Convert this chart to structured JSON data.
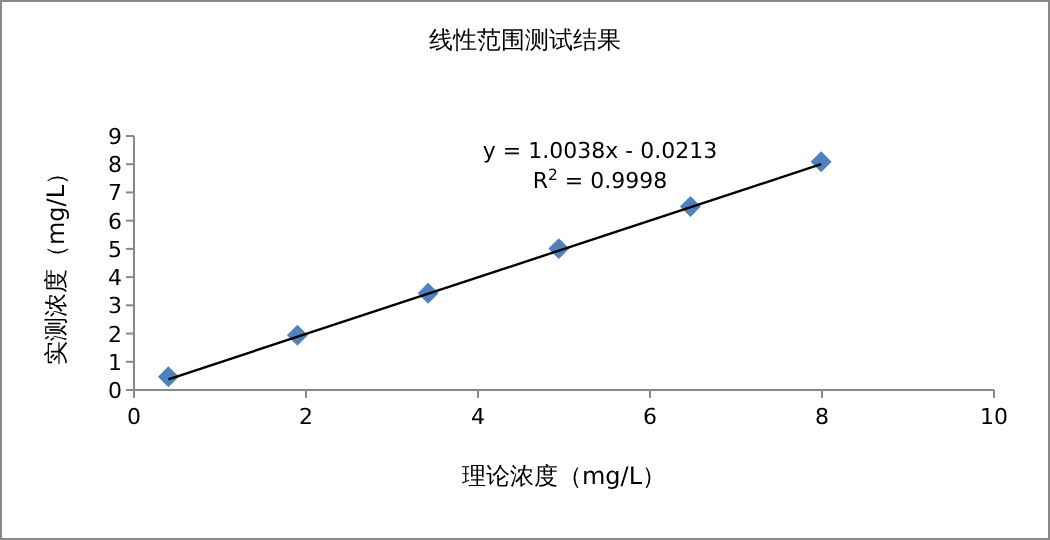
{
  "chart_data": {
    "type": "scatter",
    "title": "线性范围测试结果",
    "xlabel": "理论浓度（mg/L）",
    "ylabel": "实测浓度（mg/L）",
    "x": [
      0.4,
      1.9,
      3.42,
      4.94,
      6.47,
      7.99
    ],
    "series": [
      {
        "color": "#4f81bd",
        "marker": "diamond",
        "values": [
          0.47,
          1.94,
          3.43,
          5.01,
          6.5,
          8.09
        ]
      },
      {
        "type": "line",
        "color": "#000000",
        "marker": "none",
        "x": [
          0.4,
          7.99
        ],
        "values": [
          0.38,
          8.0
        ]
      }
    ],
    "xlim": [
      0,
      10
    ],
    "xticks": [
      0,
      2,
      4,
      6,
      8,
      10
    ],
    "ylim": [
      0,
      9
    ],
    "yticks": [
      0,
      1,
      2,
      3,
      4,
      5,
      6,
      7,
      8,
      9
    ],
    "annotations": [
      "y = 1.0038x - 0.0213",
      "R$^{2}$ = 0.9998"
    ],
    "grid": false
  }
}
